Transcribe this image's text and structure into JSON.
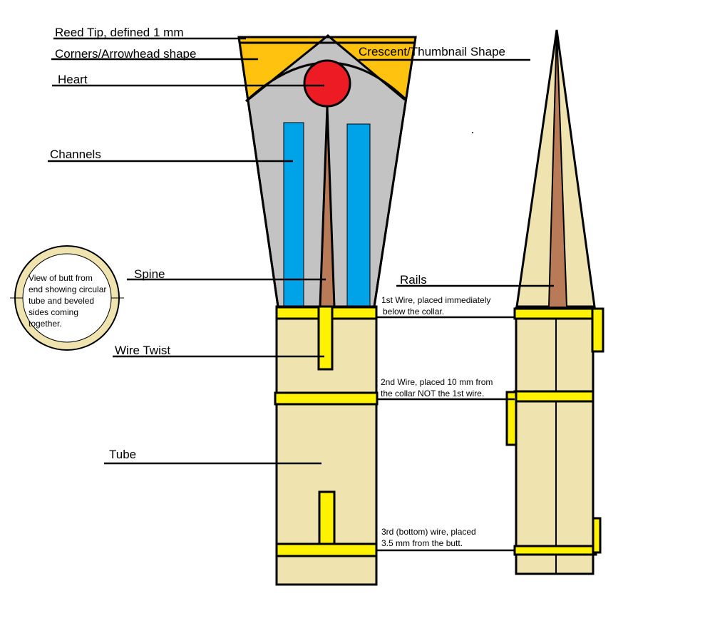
{
  "labels": {
    "reed_tip": "Reed Tip, defined 1 mm",
    "corners": "Corners/Arrowhead shape",
    "heart": "Heart",
    "channels": "Channels",
    "spine": "Spine",
    "wire_twist": "Wire Twist",
    "tube": "Tube",
    "crescent": "Crescent/Thumbnail Shape",
    "rails": "Rails",
    "butt_view": [
      "View of butt from",
      "end showing circular",
      "tube and beveled",
      "sides coming",
      "together."
    ],
    "wire1": [
      "1st Wire, placed immediately",
      "below the collar."
    ],
    "wire2": [
      "2nd Wire, placed 10 mm from",
      "the collar NOT the 1st wire."
    ],
    "wire3": [
      "3rd (bottom) wire, placed",
      "3.5 mm from the butt."
    ]
  },
  "colors": {
    "tip_yellow": "#ffc20e",
    "heart_red": "#ed1c24",
    "blade_gray": "#c3c3c3",
    "channel_blue": "#00a2e8",
    "spine_brown": "#b97a57",
    "cane": "#efe4b0",
    "wire_yellow": "#fff200",
    "outline": "#000000"
  }
}
